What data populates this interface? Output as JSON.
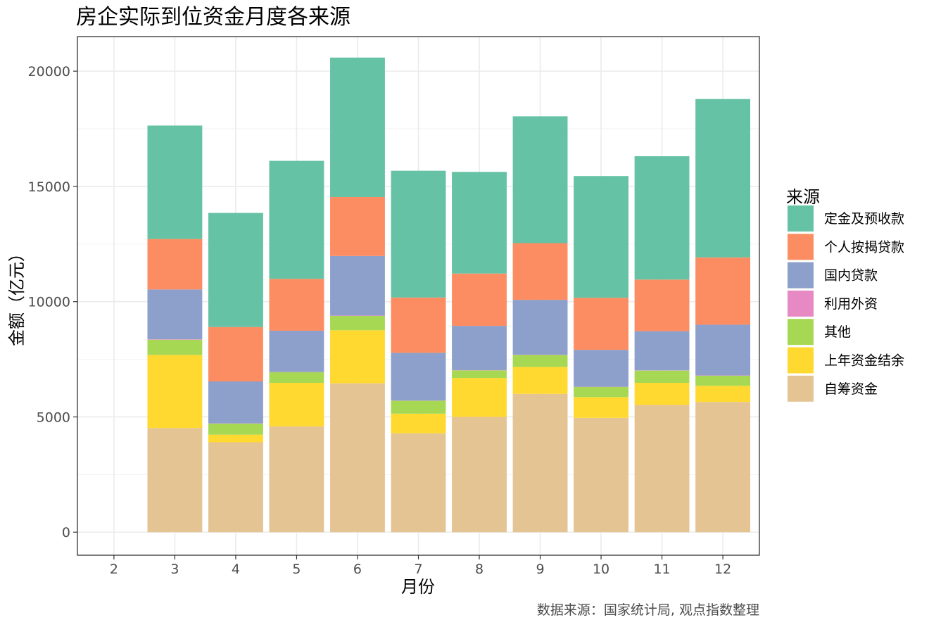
{
  "chart_data": {
    "type": "bar",
    "stacked": true,
    "title": "房企实际到位资金月度各来源",
    "xlabel": "月份",
    "ylabel": "金额（亿元）",
    "caption": "数据来源：国家统计局, 观点指数整理",
    "legend_title": "来源",
    "legend_position": "right",
    "grid": true,
    "categories": [
      "2",
      "3",
      "4",
      "5",
      "6",
      "7",
      "8",
      "9",
      "10",
      "11",
      "12"
    ],
    "ylim": [
      -1000,
      21500
    ],
    "yticks": [
      0,
      5000,
      10000,
      15000,
      20000
    ],
    "series": [
      {
        "name": "自筹资金",
        "color": "#E5C494",
        "values": [
          null,
          4520,
          3900,
          4590,
          6460,
          4290,
          5000,
          6000,
          4960,
          5520,
          5650
        ]
      },
      {
        "name": "上年资金结余",
        "color": "#FFD92F",
        "values": [
          null,
          3170,
          330,
          1890,
          2300,
          850,
          1690,
          1170,
          900,
          960,
          700
        ]
      },
      {
        "name": "其他",
        "color": "#A6D854",
        "values": [
          null,
          660,
          480,
          460,
          620,
          560,
          330,
          520,
          440,
          530,
          440
        ]
      },
      {
        "name": "利用外资",
        "color": "#E78AC3",
        "values": [
          null,
          20,
          10,
          10,
          20,
          10,
          10,
          10,
          10,
          10,
          10
        ]
      },
      {
        "name": "国内贷款",
        "color": "#8DA0CB",
        "values": [
          null,
          2160,
          1820,
          1790,
          2580,
          2070,
          1920,
          2380,
          1600,
          1700,
          2200
        ]
      },
      {
        "name": "个人按揭贷款",
        "color": "#FC8D62",
        "values": [
          null,
          2190,
          2360,
          2250,
          2560,
          2400,
          2270,
          2460,
          2260,
          2240,
          2920
        ]
      },
      {
        "name": "定金及预收款",
        "color": "#66C2A5",
        "values": [
          null,
          4920,
          4950,
          5120,
          6050,
          5500,
          4410,
          5500,
          5280,
          5350,
          6870
        ]
      }
    ],
    "legend_order": [
      "定金及预收款",
      "个人按揭贷款",
      "国内贷款",
      "利用外资",
      "其他",
      "上年资金结余",
      "自筹资金"
    ]
  }
}
